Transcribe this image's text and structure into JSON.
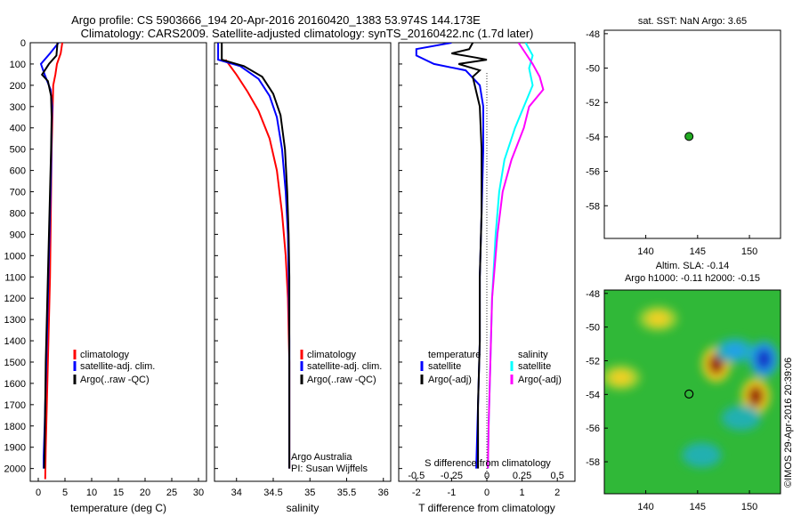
{
  "title": {
    "line1": "Argo profile: CS 5903666_194 20-Apr-2016 20160420_1383 53.974S 144.173E",
    "line2": "Climatology: CARS2009. Satellite-adjusted climatology: synTS_20160422.nc (1.7d later)"
  },
  "depth_axis": {
    "ticks": [
      0,
      100,
      200,
      300,
      400,
      500,
      600,
      700,
      800,
      900,
      1000,
      1100,
      1200,
      1300,
      1400,
      1500,
      1600,
      1700,
      1800,
      1900,
      2000
    ],
    "range": [
      0,
      2060
    ]
  },
  "colors": {
    "climatology": "#ff0000",
    "satellite": "#0000ff",
    "argo": "#000000",
    "salinity_satellite": "#00ffff",
    "salinity_argo": "#ff00ff",
    "float_marker": "#22aa22"
  },
  "chart_data": [
    {
      "name": "temperature-panel",
      "type": "line",
      "xlabel": "temperature (deg C)",
      "xlim": [
        -1.5,
        31.5
      ],
      "xticks": [
        0,
        5,
        10,
        15,
        20,
        25,
        30
      ],
      "legend": [
        "climatology",
        "satellite-adj. clim.",
        "Argo(..raw -QC)"
      ],
      "series": [
        {
          "name": "climatology",
          "color": "#ff0000",
          "points": [
            [
              4.5,
              0
            ],
            [
              4.2,
              50
            ],
            [
              3.5,
              100
            ],
            [
              3.2,
              150
            ],
            [
              2.8,
              200
            ],
            [
              2.7,
              300
            ],
            [
              2.6,
              400
            ],
            [
              2.5,
              500
            ],
            [
              2.4,
              700
            ],
            [
              2.3,
              900
            ],
            [
              2.2,
              1100
            ],
            [
              2.0,
              1300
            ],
            [
              1.8,
              1500
            ],
            [
              1.6,
              1700
            ],
            [
              1.4,
              1900
            ],
            [
              1.3,
              2050
            ]
          ]
        },
        {
          "name": "satellite-adj. clim.",
          "color": "#0000ff",
          "points": [
            [
              3.8,
              0
            ],
            [
              2.2,
              50
            ],
            [
              0.5,
              100
            ],
            [
              1.2,
              150
            ],
            [
              2.3,
              220
            ],
            [
              2.6,
              300
            ],
            [
              2.5,
              400
            ],
            [
              2.4,
              600
            ],
            [
              2.2,
              800
            ],
            [
              2.0,
              1000
            ],
            [
              1.8,
              1200
            ],
            [
              1.6,
              1400
            ],
            [
              1.4,
              1600
            ],
            [
              1.2,
              1800
            ],
            [
              1.0,
              1950
            ],
            [
              1.0,
              2000
            ]
          ]
        },
        {
          "name": "Argo(..raw -QC)",
          "color": "#000000",
          "points": [
            [
              3.6,
              0
            ],
            [
              3.4,
              60
            ],
            [
              2.0,
              100
            ],
            [
              0.7,
              150
            ],
            [
              1.8,
              180
            ],
            [
              2.4,
              250
            ],
            [
              2.5,
              350
            ],
            [
              2.4,
              500
            ],
            [
              2.2,
              700
            ],
            [
              2.0,
              900
            ],
            [
              1.8,
              1100
            ],
            [
              1.6,
              1300
            ],
            [
              1.4,
              1500
            ],
            [
              1.3,
              1700
            ],
            [
              1.2,
              1900
            ],
            [
              1.1,
              2000
            ]
          ]
        }
      ]
    },
    {
      "name": "salinity-panel",
      "type": "line",
      "xlabel": "salinity",
      "xlim": [
        33.7,
        36.1
      ],
      "xticks": [
        34,
        34.5,
        35,
        35.5,
        36
      ],
      "legend": [
        "climatology",
        "satellite-adj. clim.",
        "Argo(..raw -QC)"
      ],
      "annotation": [
        "Argo Australia",
        "PI: Susan Wijffels"
      ],
      "series": [
        {
          "name": "climatology",
          "color": "#ff0000",
          "points": [
            [
              33.85,
              80
            ],
            [
              34.0,
              150
            ],
            [
              34.15,
              230
            ],
            [
              34.3,
              320
            ],
            [
              34.45,
              450
            ],
            [
              34.55,
              600
            ],
            [
              34.62,
              800
            ],
            [
              34.67,
              1000
            ],
            [
              34.7,
              1200
            ],
            [
              34.72,
              1500
            ],
            [
              34.72,
              1800
            ],
            [
              34.72,
              2000
            ]
          ]
        },
        {
          "name": "satellite-adj. clim.",
          "color": "#0000ff",
          "points": [
            [
              33.75,
              0
            ],
            [
              33.75,
              80
            ],
            [
              34.05,
              110
            ],
            [
              34.3,
              170
            ],
            [
              34.45,
              250
            ],
            [
              34.55,
              350
            ],
            [
              34.62,
              500
            ],
            [
              34.67,
              700
            ],
            [
              34.7,
              900
            ],
            [
              34.71,
              1100
            ],
            [
              34.72,
              1400
            ],
            [
              34.72,
              1700
            ],
            [
              34.72,
              2000
            ]
          ]
        },
        {
          "name": "Argo(..raw -QC)",
          "color": "#000000",
          "points": [
            [
              33.8,
              0
            ],
            [
              33.8,
              80
            ],
            [
              34.1,
              110
            ],
            [
              34.35,
              160
            ],
            [
              34.5,
              240
            ],
            [
              34.6,
              340
            ],
            [
              34.66,
              500
            ],
            [
              34.69,
              700
            ],
            [
              34.71,
              900
            ],
            [
              34.72,
              1100
            ],
            [
              34.72,
              1400
            ],
            [
              34.72,
              1700
            ],
            [
              34.72,
              2000
            ]
          ]
        }
      ]
    },
    {
      "name": "difference-panel",
      "type": "line",
      "xlabel": "T difference from climatology",
      "xlabel_top": "S difference from climatology",
      "xlim_t": [
        -2.5,
        2.5
      ],
      "xticks_t": [
        -2,
        -1,
        0,
        1,
        2
      ],
      "xticks_s": [
        "-0.5",
        "-0.25",
        "0",
        "0.25",
        "0.5"
      ],
      "legend_temperature": [
        "temperature",
        "satellite",
        "Argo(-adj)"
      ],
      "legend_salinity": [
        "salinity",
        "satellite",
        "Argo(-adj)"
      ],
      "series": [
        {
          "name": "temperature satellite",
          "color": "#0000ff",
          "points": [
            [
              -1.0,
              0
            ],
            [
              -2.0,
              30
            ],
            [
              -2.0,
              60
            ],
            [
              -1.5,
              100
            ],
            [
              -0.6,
              130
            ],
            [
              -0.2,
              200
            ],
            [
              -0.1,
              300
            ],
            [
              -0.1,
              500
            ],
            [
              -0.15,
              800
            ],
            [
              -0.2,
              1100
            ],
            [
              -0.2,
              1400
            ],
            [
              -0.25,
              1700
            ],
            [
              -0.3,
              2000
            ]
          ]
        },
        {
          "name": "temperature Argo(-adj)",
          "color": "#000000",
          "points": [
            [
              -0.4,
              0
            ],
            [
              -0.5,
              30
            ],
            [
              -1.0,
              50
            ],
            [
              -0.3,
              70
            ],
            [
              0.0,
              80
            ],
            [
              -0.8,
              100
            ],
            [
              -0.2,
              130
            ],
            [
              -0.4,
              160
            ],
            [
              -0.3,
              230
            ],
            [
              -0.2,
              300
            ],
            [
              -0.15,
              500
            ],
            [
              -0.15,
              800
            ],
            [
              -0.2,
              1100
            ],
            [
              -0.2,
              1400
            ],
            [
              -0.25,
              1700
            ],
            [
              -0.25,
              2000
            ]
          ]
        },
        {
          "name": "salinity satellite",
          "color": "#00ffff",
          "points": [
            [
              1.1,
              0
            ],
            [
              1.3,
              60
            ],
            [
              1.2,
              120
            ],
            [
              1.3,
              200
            ],
            [
              1.05,
              300
            ],
            [
              0.8,
              400
            ],
            [
              0.5,
              550
            ],
            [
              0.35,
              700
            ],
            [
              0.25,
              900
            ],
            [
              0.15,
              1200
            ],
            [
              0.1,
              1500
            ],
            [
              0.05,
              1800
            ],
            [
              0.03,
              2000
            ]
          ]
        },
        {
          "name": "salinity Argo(-adj)",
          "color": "#ff00ff",
          "points": [
            [
              0.9,
              0
            ],
            [
              1.1,
              50
            ],
            [
              1.3,
              100
            ],
            [
              1.5,
              160
            ],
            [
              1.6,
              220
            ],
            [
              1.2,
              300
            ],
            [
              1.05,
              400
            ],
            [
              0.7,
              550
            ],
            [
              0.45,
              700
            ],
            [
              0.3,
              900
            ],
            [
              0.15,
              1200
            ],
            [
              0.1,
              1500
            ],
            [
              0.05,
              1800
            ],
            [
              0.03,
              2000
            ]
          ]
        }
      ]
    },
    {
      "name": "sst-map",
      "type": "scatter",
      "title": "sat. SST: NaN Argo: 3.65",
      "xlim": [
        136,
        153
      ],
      "ylim": [
        -59.9,
        -47.8
      ],
      "xticks": [
        140,
        145,
        150
      ],
      "yticks": [
        -58,
        -56,
        -54,
        -52,
        -50,
        -48
      ],
      "points": [
        {
          "lon": 144.173,
          "lat": -53.974
        }
      ]
    },
    {
      "name": "sla-map",
      "type": "heatmap",
      "title_line1": "Altim. SLA: -0.14",
      "title_line2": "Argo h1000: -0.11 h2000: -0.15",
      "side_label": "©IMOS 29-Apr-2016 20:39:06",
      "xlim": [
        136,
        153
      ],
      "ylim": [
        -59.9,
        -47.8
      ],
      "xticks": [
        140,
        145,
        150
      ],
      "yticks": [
        -58,
        -56,
        -54,
        -52,
        -50,
        -48
      ],
      "float_position": {
        "lon": 144.173,
        "lat": -53.974
      },
      "features": [
        {
          "lon": 150.6,
          "lat": -54.1,
          "value": 1.0
        },
        {
          "lon": 146.8,
          "lat": -52.2,
          "value": 0.9
        },
        {
          "lon": 148.6,
          "lat": -51.4,
          "value": -0.5
        },
        {
          "lon": 151.4,
          "lat": -51.9,
          "value": -0.8
        },
        {
          "lon": 137.6,
          "lat": -53.0,
          "value": 0.35
        },
        {
          "lon": 141.2,
          "lat": -49.5,
          "value": 0.3
        },
        {
          "lon": 145.4,
          "lat": -57.6,
          "value": -0.3
        },
        {
          "lon": 149.2,
          "lat": -55.4,
          "value": -0.25
        }
      ]
    }
  ]
}
